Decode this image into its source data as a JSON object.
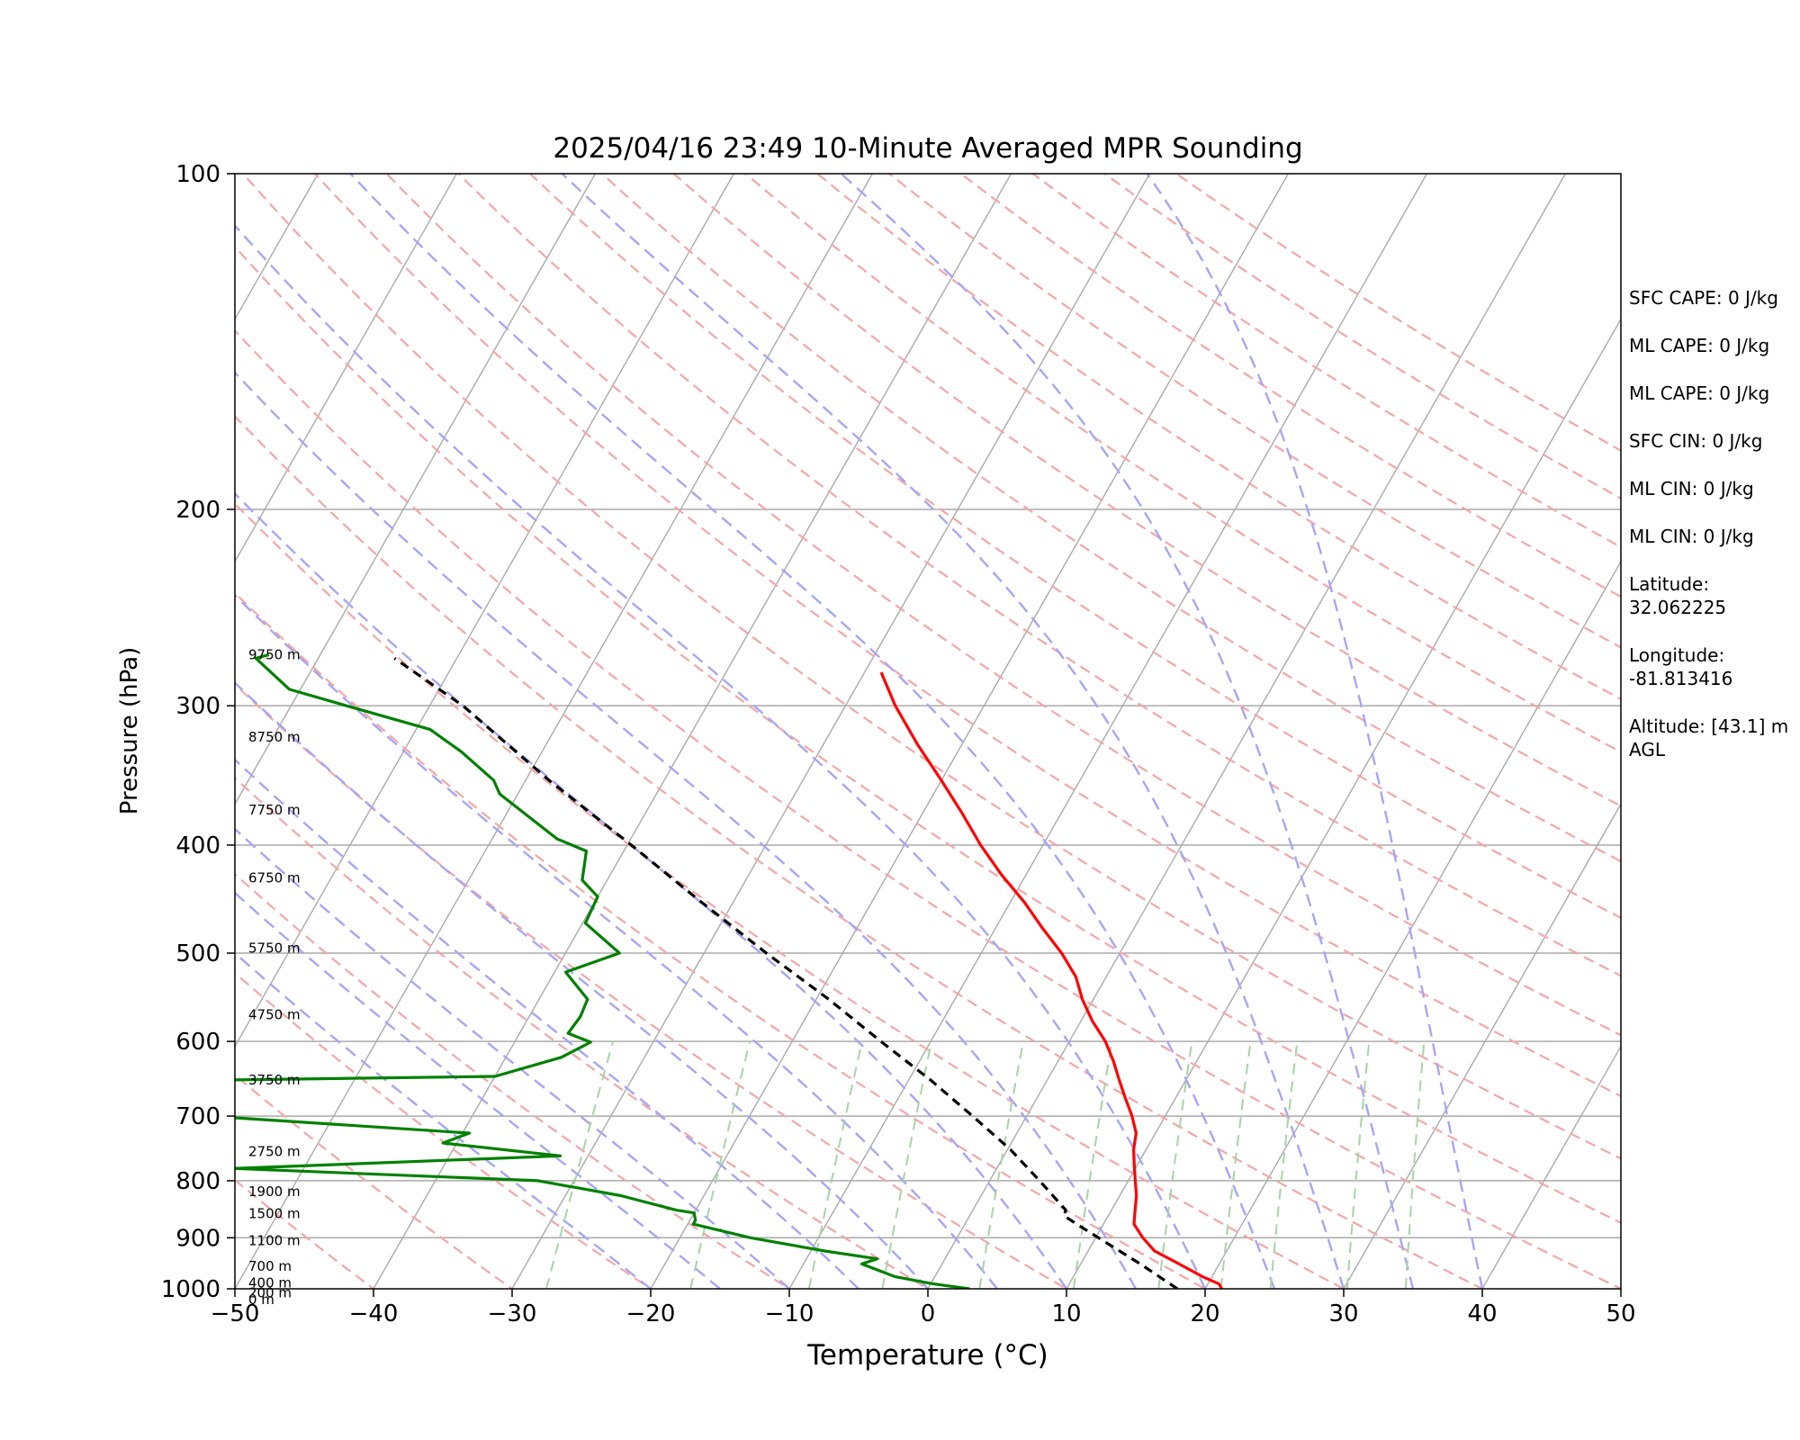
{
  "chart_data": {
    "type": "line",
    "title": "2025/04/16 23:49 10-Minute Averaged MPR Sounding",
    "xlabel": "Temperature (°C)",
    "ylabel": "Pressure (hPa)",
    "xlim": [
      -50,
      50
    ],
    "ylim": [
      1000,
      100
    ],
    "y_scale": "log",
    "skew": "skew-T log-p diagram",
    "grid": true,
    "x_ticks": [
      "−50",
      "−40",
      "−30",
      "−20",
      "−10",
      "0",
      "10",
      "20",
      "30",
      "40",
      "50"
    ],
    "y_ticks": [
      "100",
      "200",
      "300",
      "400",
      "500",
      "600",
      "700",
      "800",
      "900",
      "1000"
    ],
    "colors": {
      "temperature": "#ff0000",
      "dewpoint": "#008000",
      "parcel": "#000000",
      "dry_adiabats": "#f4a6a6",
      "moist_adiabats": "#a6a6f4",
      "mixing_ratio": "#a6d4a6",
      "isotherms": "#aaaaaa"
    },
    "series": [
      {
        "key": "temperature",
        "pressure": [
          1000,
          990,
          975,
          950,
          925,
          900,
          875,
          850,
          825,
          800,
          775,
          750,
          725,
          700,
          675,
          650,
          625,
          600,
          575,
          550,
          525,
          500,
          475,
          450,
          425,
          400,
          375,
          350,
          325,
          300,
          280
        ],
        "values": [
          21.2,
          20.8,
          19.3,
          17.1,
          14.8,
          13.4,
          12.2,
          11.7,
          11.2,
          10.5,
          9.8,
          9.1,
          8.6,
          7.6,
          6.4,
          5.2,
          4.0,
          2.6,
          0.8,
          -0.8,
          -2.2,
          -4.2,
          -6.6,
          -9.0,
          -11.8,
          -14.5,
          -17.1,
          -20.0,
          -23.2,
          -26.4,
          -28.8
        ]
      },
      {
        "key": "dewpoint",
        "pressure": [
          1000,
          990,
          975,
          950,
          940,
          925,
          900,
          875,
          868,
          855,
          850,
          825,
          800,
          780,
          760,
          740,
          725,
          700,
          688,
          660,
          645,
          620,
          601,
          590,
          570,
          550,
          520,
          500,
          470,
          445,
          430,
          405,
          395,
          360,
          350,
          330,
          315,
          300,
          290,
          272,
          270
        ],
        "values": [
          3.0,
          0.2,
          -2.9,
          -5.8,
          -4.9,
          -9.0,
          -14.9,
          -19.6,
          -19.6,
          -20.0,
          -21.4,
          -26.0,
          -32.6,
          -55.0,
          -32.0,
          -41.0,
          -39.5,
          -59.0,
          -65.0,
          -100.0,
          -40.0,
          -36.0,
          -34.5,
          -36.5,
          -36.3,
          -36.5,
          -39.2,
          -36.1,
          -39.8,
          -40.0,
          -41.8,
          -42.7,
          -45.3,
          -51.3,
          -52.3,
          -55.8,
          -59.0,
          -66.0,
          -70.8,
          -74.5,
          -73.7
        ]
      },
      {
        "key": "parcel",
        "pressure": [
          1000,
          950,
          900,
          880,
          860,
          850,
          800,
          750,
          700,
          650,
          600,
          550,
          500,
          450,
          400,
          350,
          300,
          272
        ],
        "values": [
          18.0,
          14.3,
          10.2,
          8.5,
          6.8,
          6.7,
          3.6,
          0.2,
          -3.9,
          -8.4,
          -13.6,
          -19.1,
          -25.5,
          -32.3,
          -39.7,
          -48.3,
          -57.6,
          -64.5
        ]
      }
    ],
    "height_labels": [
      "9750 m",
      "8750 m",
      "7750 m",
      "6750 m",
      "5750 m",
      "4750 m",
      "3750 m",
      "2750 m",
      "1900 m",
      "1500 m",
      "1100 m",
      "700 m",
      "400 m",
      "200 m",
      "0 m"
    ],
    "height_pressures": [
      270,
      320,
      372,
      428,
      495,
      568,
      650,
      753,
      818,
      856,
      905,
      955,
      988,
      1008,
      1023
    ],
    "stats": [
      "SFC CAPE: 0 J/kg",
      "ML CAPE: 0 J/kg",
      "ML CAPE: 0 J/kg",
      "SFC CIN: 0 J/kg",
      "ML CIN: 0 J/kg",
      "ML CIN: 0 J/kg",
      "Latitude: 32.062225",
      "Longitude: -81.813416",
      "Altitude: [43.1] m AGL"
    ]
  }
}
